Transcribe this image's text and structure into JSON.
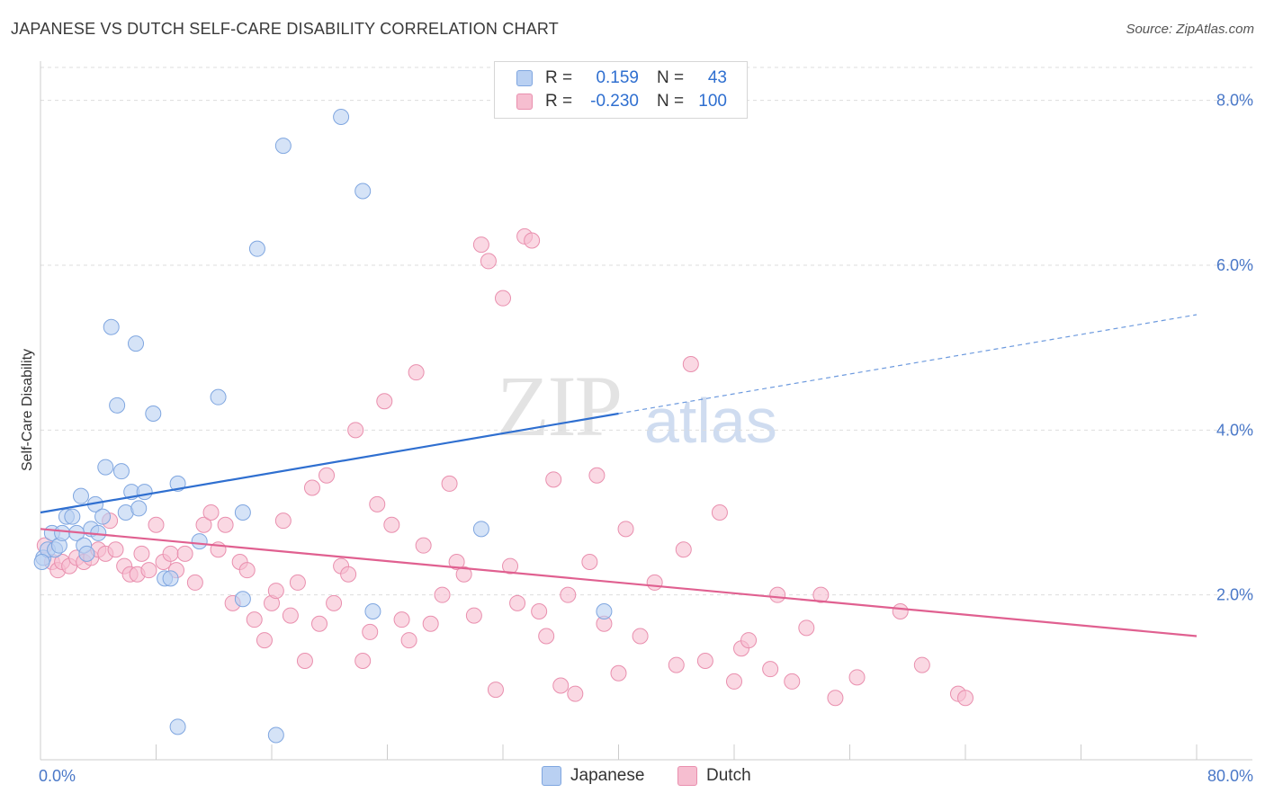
{
  "title": "JAPANESE VS DUTCH SELF-CARE DISABILITY CORRELATION CHART",
  "source": "Source: ZipAtlas.com",
  "watermark": {
    "zip": "ZIP",
    "atlas": "atlas"
  },
  "colors": {
    "japanese_fill": "#b9d0f2",
    "japanese_stroke": "#7fa6e0",
    "japanese_line": "#2f6fd0",
    "dutch_fill": "#f6bed0",
    "dutch_stroke": "#e98fae",
    "dutch_line": "#e06090",
    "grid": "#dddddd",
    "tick_label": "#4a78c8"
  },
  "legend": {
    "rows": [
      {
        "r_label": "R =",
        "r_value": "0.159",
        "n_label": "N =",
        "n_value": "43"
      },
      {
        "r_label": "R =",
        "r_value": "-0.230",
        "n_label": "N =",
        "n_value": "100"
      }
    ]
  },
  "bottom_legend": {
    "japanese": "Japanese",
    "dutch": "Dutch"
  },
  "chart_data": {
    "type": "scatter",
    "title": "JAPANESE VS DUTCH SELF-CARE DISABILITY CORRELATION CHART",
    "xlabel": "",
    "ylabel": "Self-Care Disability",
    "xlim": [
      0,
      80
    ],
    "ylim": [
      0,
      8.4
    ],
    "x_tick_labels": [
      "0.0%",
      "80.0%"
    ],
    "y_ticks": [
      2,
      4,
      6,
      8
    ],
    "y_tick_labels": [
      "2.0%",
      "4.0%",
      "6.0%",
      "8.0%"
    ],
    "grid": "horizontal dashed",
    "legend_position": "top-center",
    "series": [
      {
        "name": "Japanese",
        "r": 0.159,
        "n": 43,
        "trend": {
          "x0": 0,
          "y0": 3.0,
          "x1": 40,
          "y1": 4.2,
          "dashed_to_x": 80,
          "dashed_to_y": 5.4
        },
        "points": [
          [
            0.2,
            2.45
          ],
          [
            0.5,
            2.55
          ],
          [
            0.8,
            2.75
          ],
          [
            1.0,
            2.55
          ],
          [
            1.3,
            2.6
          ],
          [
            1.5,
            2.75
          ],
          [
            1.8,
            2.95
          ],
          [
            2.2,
            2.95
          ],
          [
            2.5,
            2.75
          ],
          [
            2.8,
            3.2
          ],
          [
            3.0,
            2.6
          ],
          [
            3.2,
            2.5
          ],
          [
            3.5,
            2.8
          ],
          [
            3.8,
            3.1
          ],
          [
            4.0,
            2.75
          ],
          [
            4.3,
            2.95
          ],
          [
            4.5,
            3.55
          ],
          [
            4.9,
            5.25
          ],
          [
            5.3,
            4.3
          ],
          [
            5.6,
            3.5
          ],
          [
            5.9,
            3.0
          ],
          [
            6.3,
            3.25
          ],
          [
            6.6,
            5.05
          ],
          [
            6.8,
            3.05
          ],
          [
            7.2,
            3.25
          ],
          [
            7.8,
            4.2
          ],
          [
            8.6,
            2.2
          ],
          [
            9.0,
            2.2
          ],
          [
            9.5,
            3.35
          ],
          [
            9.5,
            0.4
          ],
          [
            11.0,
            2.65
          ],
          [
            12.3,
            4.4
          ],
          [
            14.0,
            3.0
          ],
          [
            14.0,
            1.95
          ],
          [
            15.0,
            6.2
          ],
          [
            16.8,
            7.45
          ],
          [
            16.3,
            0.3
          ],
          [
            20.8,
            7.8
          ],
          [
            22.3,
            6.9
          ],
          [
            23.0,
            1.8
          ],
          [
            30.5,
            2.8
          ],
          [
            39.0,
            1.8
          ],
          [
            0.1,
            2.4
          ]
        ]
      },
      {
        "name": "Dutch",
        "r": -0.23,
        "n": 100,
        "trend": {
          "x0": 0,
          "y0": 2.8,
          "x1": 80,
          "y1": 1.5
        },
        "points": [
          [
            0.3,
            2.6
          ],
          [
            0.8,
            2.4
          ],
          [
            1.2,
            2.3
          ],
          [
            1.5,
            2.4
          ],
          [
            2.0,
            2.35
          ],
          [
            2.5,
            2.45
          ],
          [
            3.0,
            2.4
          ],
          [
            3.5,
            2.45
          ],
          [
            4.0,
            2.55
          ],
          [
            4.5,
            2.5
          ],
          [
            4.8,
            2.9
          ],
          [
            5.2,
            2.55
          ],
          [
            5.8,
            2.35
          ],
          [
            6.2,
            2.25
          ],
          [
            6.7,
            2.25
          ],
          [
            7.0,
            2.5
          ],
          [
            7.5,
            2.3
          ],
          [
            8.0,
            2.85
          ],
          [
            8.5,
            2.4
          ],
          [
            9.0,
            2.5
          ],
          [
            9.4,
            2.3
          ],
          [
            10.0,
            2.5
          ],
          [
            10.7,
            2.15
          ],
          [
            11.3,
            2.85
          ],
          [
            11.8,
            3.0
          ],
          [
            12.3,
            2.55
          ],
          [
            12.8,
            2.85
          ],
          [
            13.3,
            1.9
          ],
          [
            13.8,
            2.4
          ],
          [
            14.3,
            2.3
          ],
          [
            14.8,
            1.7
          ],
          [
            15.5,
            1.45
          ],
          [
            16.0,
            1.9
          ],
          [
            16.3,
            2.05
          ],
          [
            16.8,
            2.9
          ],
          [
            17.3,
            1.75
          ],
          [
            17.8,
            2.15
          ],
          [
            18.3,
            1.2
          ],
          [
            18.8,
            3.3
          ],
          [
            19.3,
            1.65
          ],
          [
            19.8,
            3.45
          ],
          [
            20.3,
            1.9
          ],
          [
            20.8,
            2.35
          ],
          [
            21.3,
            2.25
          ],
          [
            21.8,
            4.0
          ],
          [
            22.3,
            1.2
          ],
          [
            22.8,
            1.55
          ],
          [
            23.3,
            3.1
          ],
          [
            23.8,
            4.35
          ],
          [
            24.3,
            2.85
          ],
          [
            25.0,
            1.7
          ],
          [
            25.5,
            1.45
          ],
          [
            26.0,
            4.7
          ],
          [
            26.5,
            2.6
          ],
          [
            27.0,
            1.65
          ],
          [
            27.8,
            2.0
          ],
          [
            28.3,
            3.35
          ],
          [
            28.8,
            2.4
          ],
          [
            29.3,
            2.25
          ],
          [
            30.0,
            1.75
          ],
          [
            30.5,
            6.25
          ],
          [
            31.0,
            6.05
          ],
          [
            31.5,
            0.85
          ],
          [
            32.0,
            5.6
          ],
          [
            32.5,
            2.35
          ],
          [
            33.0,
            1.9
          ],
          [
            33.5,
            6.35
          ],
          [
            34.0,
            6.3
          ],
          [
            34.5,
            1.8
          ],
          [
            35.0,
            1.5
          ],
          [
            35.5,
            3.4
          ],
          [
            36.0,
            0.9
          ],
          [
            36.5,
            2.0
          ],
          [
            37.0,
            0.8
          ],
          [
            38.0,
            2.4
          ],
          [
            38.5,
            3.45
          ],
          [
            39.0,
            1.65
          ],
          [
            40.0,
            1.05
          ],
          [
            40.5,
            2.8
          ],
          [
            41.5,
            1.5
          ],
          [
            42.5,
            2.15
          ],
          [
            44.0,
            1.15
          ],
          [
            44.5,
            2.55
          ],
          [
            45.0,
            4.8
          ],
          [
            46.0,
            1.2
          ],
          [
            47.0,
            3.0
          ],
          [
            48.0,
            0.95
          ],
          [
            48.5,
            1.35
          ],
          [
            49.0,
            1.45
          ],
          [
            50.5,
            1.1
          ],
          [
            51.0,
            2.0
          ],
          [
            52.0,
            0.95
          ],
          [
            53.0,
            1.6
          ],
          [
            54.0,
            2.0
          ],
          [
            55.0,
            0.75
          ],
          [
            56.5,
            1.0
          ],
          [
            59.5,
            1.8
          ],
          [
            61.0,
            1.15
          ],
          [
            63.5,
            0.8
          ],
          [
            64.0,
            0.75
          ]
        ]
      }
    ]
  }
}
